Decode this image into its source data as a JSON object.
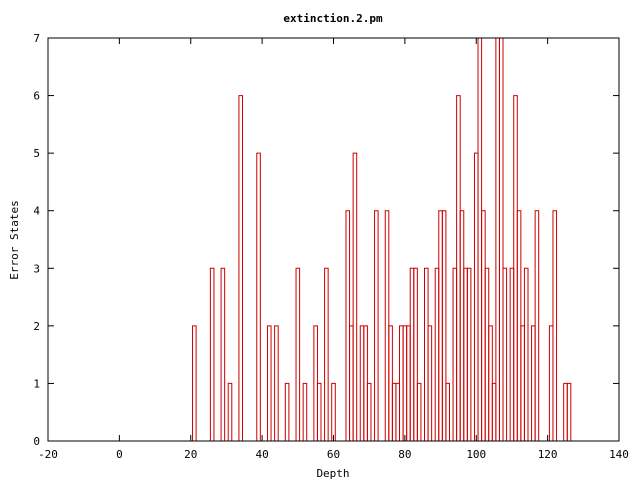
{
  "chart_data": {
    "type": "bar",
    "style": "histogram-steps",
    "title": "extinction.2.pm",
    "xlabel": "Depth",
    "ylabel": "Error States",
    "xlim": [
      -20,
      140
    ],
    "ylim": [
      0,
      7
    ],
    "x_ticks": [
      -20,
      0,
      20,
      40,
      60,
      80,
      100,
      120,
      140
    ],
    "y_ticks": [
      0,
      1,
      2,
      3,
      4,
      5,
      6,
      7
    ],
    "grid": false,
    "legend": "none",
    "series": [
      {
        "color": "#cc0000",
        "x": [
          21,
          22,
          23,
          24,
          25,
          26,
          27,
          28,
          29,
          30,
          31,
          32,
          33,
          34,
          35,
          36,
          37,
          38,
          39,
          40,
          41,
          42,
          43,
          44,
          45,
          46,
          47,
          48,
          49,
          50,
          51,
          52,
          53,
          54,
          55,
          56,
          57,
          58,
          59,
          60,
          61,
          62,
          63,
          64,
          65,
          66,
          67,
          68,
          69,
          70,
          71,
          72,
          73,
          74,
          75,
          76,
          77,
          78,
          79,
          80,
          81,
          82,
          83,
          84,
          85,
          86,
          87,
          88,
          89,
          90,
          91,
          92,
          93,
          94,
          95,
          96,
          97,
          98,
          99,
          100,
          101,
          102,
          103,
          104,
          105,
          106,
          107,
          108,
          109,
          110,
          111,
          112,
          113,
          114,
          115,
          116,
          117,
          118,
          119,
          120,
          121,
          122,
          123,
          124,
          125,
          126
        ],
        "values": [
          2,
          0,
          0,
          0,
          0,
          3,
          0,
          0,
          3,
          0,
          1,
          0,
          0,
          6,
          0,
          0,
          0,
          0,
          5,
          0,
          0,
          2,
          0,
          2,
          0,
          0,
          1,
          0,
          0,
          3,
          0,
          1,
          0,
          0,
          2,
          1,
          0,
          3,
          0,
          1,
          0,
          0,
          0,
          4,
          2,
          5,
          0,
          2,
          2,
          1,
          0,
          4,
          0,
          0,
          4,
          2,
          1,
          1,
          2,
          2,
          2,
          3,
          3,
          1,
          0,
          3,
          2,
          0,
          3,
          4,
          4,
          1,
          0,
          3,
          6,
          4,
          3,
          3,
          0,
          5,
          7,
          4,
          3,
          2,
          1,
          7,
          7,
          3,
          0,
          3,
          6,
          4,
          2,
          3,
          0,
          2,
          4,
          0,
          0,
          0,
          2,
          4,
          0,
          0,
          1,
          1
        ]
      }
    ]
  }
}
